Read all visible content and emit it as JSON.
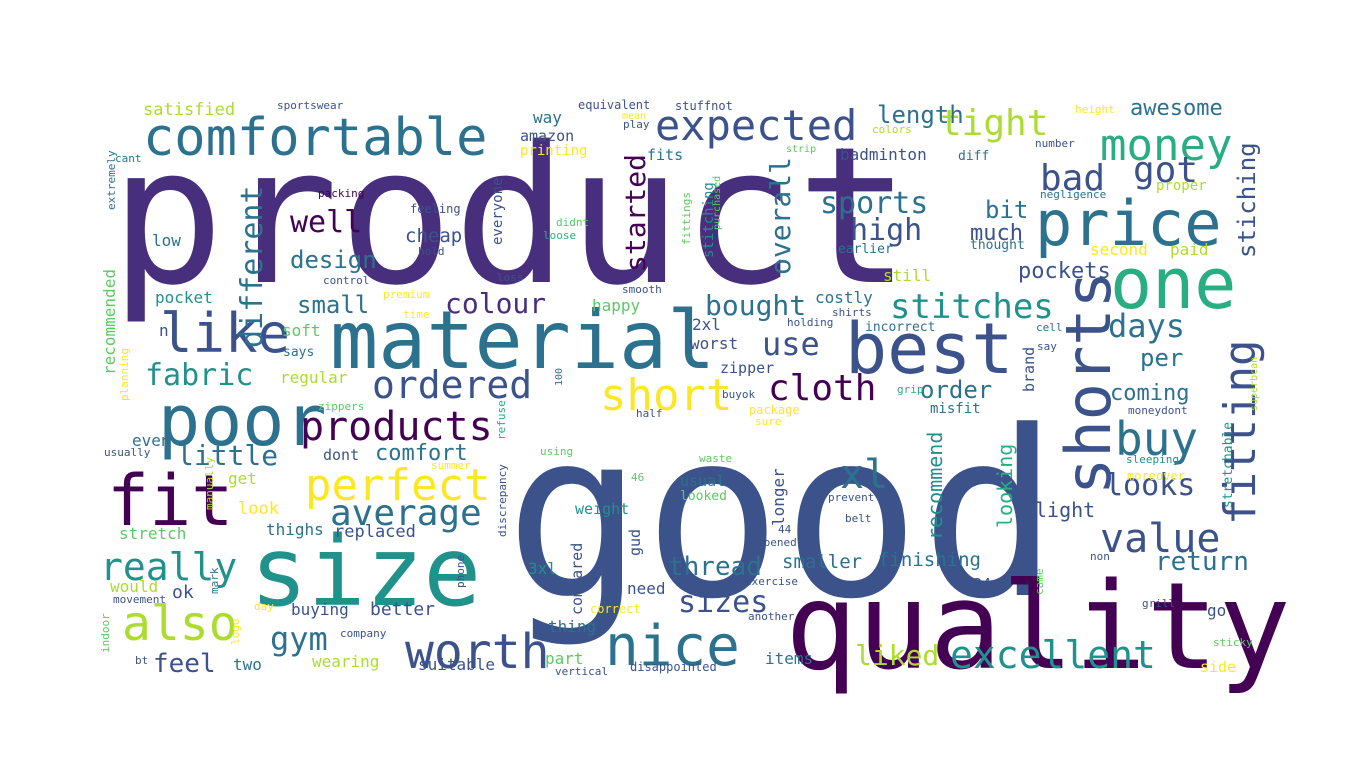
{
  "palette": {
    "dark_purple": "#440154",
    "indigo": "#472f7d",
    "blue_purple": "#3b528b",
    "steel_blue": "#2c728e",
    "teal": "#21918c",
    "sea_green": "#28ae80",
    "green": "#5ec962",
    "lime": "#addc30",
    "yellow": "#fde725"
  },
  "words": [
    {
      "text": "product",
      "color": "#472f7d"
    },
    {
      "text": "good",
      "color": "#3b528b"
    },
    {
      "text": "quality",
      "color": "#440154"
    },
    {
      "text": "size",
      "color": "#21918c"
    },
    {
      "text": "material",
      "color": "#2c728e"
    },
    {
      "text": "best",
      "color": "#3b528b"
    },
    {
      "text": "one",
      "color": "#28ae80"
    },
    {
      "text": "price",
      "color": "#2c728e"
    },
    {
      "text": "comfortable",
      "color": "#2c728e"
    },
    {
      "text": "poor",
      "color": "#2c728e"
    },
    {
      "text": "fit",
      "color": "#440154"
    },
    {
      "text": "nice",
      "color": "#2c728e"
    },
    {
      "text": "shorts",
      "color": "#3b528b"
    },
    {
      "text": "also",
      "color": "#addc30"
    },
    {
      "text": "worth",
      "color": "#3b528b"
    },
    {
      "text": "like",
      "color": "#3b528b"
    },
    {
      "text": "money",
      "color": "#28ae80"
    },
    {
      "text": "expected",
      "color": "#3b528b"
    },
    {
      "text": "buy",
      "color": "#2c728e"
    },
    {
      "text": "excellent",
      "color": "#21918c"
    },
    {
      "text": "short",
      "color": "#fde725"
    },
    {
      "text": "perfect",
      "color": "#fde725"
    },
    {
      "text": "products",
      "color": "#440154"
    },
    {
      "text": "ordered",
      "color": "#3b528b"
    },
    {
      "text": "fitting",
      "color": "#3b528b"
    },
    {
      "text": "really",
      "color": "#21918c"
    },
    {
      "text": "value",
      "color": "#3b528b"
    },
    {
      "text": "average",
      "color": "#2c728e"
    },
    {
      "text": "xl",
      "color": "#2c728e"
    },
    {
      "text": "bad",
      "color": "#3b528b"
    },
    {
      "text": "got",
      "color": "#3b528b"
    },
    {
      "text": "tight",
      "color": "#addc30"
    },
    {
      "text": "cloth",
      "color": "#440154"
    },
    {
      "text": "stitches",
      "color": "#21918c"
    },
    {
      "text": "gym",
      "color": "#2c728e"
    },
    {
      "text": "looks",
      "color": "#3b528b"
    },
    {
      "text": "days",
      "color": "#2c728e"
    },
    {
      "text": "sizes",
      "color": "#3b528b"
    },
    {
      "text": "sports",
      "color": "#2c728e"
    },
    {
      "text": "high",
      "color": "#3b528b"
    },
    {
      "text": "use",
      "color": "#3b528b"
    },
    {
      "text": "fabric",
      "color": "#21918c"
    },
    {
      "text": "colour",
      "color": "#472f7d"
    },
    {
      "text": "bought",
      "color": "#2c728e"
    },
    {
      "text": "started",
      "color": "#440154"
    },
    {
      "text": "overall",
      "color": "#2c728e"
    },
    {
      "text": "different",
      "color": "#2c728e"
    },
    {
      "text": "well",
      "color": "#440154"
    },
    {
      "text": "liked",
      "color": "#addc30"
    },
    {
      "text": "little",
      "color": "#2c728e"
    },
    {
      "text": "feel",
      "color": "#3b528b"
    },
    {
      "text": "thread",
      "color": "#2c728e"
    },
    {
      "text": "return",
      "color": "#2c728e"
    },
    {
      "text": "awesome",
      "color": "#2c728e"
    },
    {
      "text": "length",
      "color": "#2c728e"
    },
    {
      "text": "stiching",
      "color": "#3b528b"
    },
    {
      "text": "pockets",
      "color": "#3b528b"
    },
    {
      "text": "per",
      "color": "#2c728e"
    },
    {
      "text": "order",
      "color": "#2c728e"
    },
    {
      "text": "coming",
      "color": "#2c728e"
    },
    {
      "text": "comfort",
      "color": "#2c728e"
    },
    {
      "text": "design",
      "color": "#2c728e"
    },
    {
      "text": "small",
      "color": "#2c728e"
    },
    {
      "text": "bit",
      "color": "#2c728e"
    },
    {
      "text": "much",
      "color": "#3b528b"
    },
    {
      "text": "recommend",
      "color": "#21918c"
    },
    {
      "text": "looking",
      "color": "#28ae80"
    },
    {
      "text": "light",
      "color": "#3b528b"
    },
    {
      "text": "smaller",
      "color": "#2c728e"
    },
    {
      "text": "finishing",
      "color": "#2c728e"
    },
    {
      "text": "cheap",
      "color": "#3b528b"
    },
    {
      "text": "second",
      "color": "#fde725"
    },
    {
      "text": "paid",
      "color": "#addc30"
    },
    {
      "text": "satisfied",
      "color": "#addc30"
    },
    {
      "text": "sportswear",
      "color": "#3b528b"
    },
    {
      "text": "equivalent",
      "color": "#3b528b"
    },
    {
      "text": "stuffnot",
      "color": "#3b528b"
    },
    {
      "text": "height",
      "color": "#fde725"
    },
    {
      "text": "mean",
      "color": "#fde725"
    },
    {
      "text": "play",
      "color": "#3b528b"
    },
    {
      "text": "colors",
      "color": "#addc30"
    },
    {
      "text": "cant",
      "color": "#2c728e"
    },
    {
      "text": "extremely",
      "color": "#2c728e"
    },
    {
      "text": "printing",
      "color": "#fde725"
    },
    {
      "text": "way",
      "color": "#2c728e"
    },
    {
      "text": "amazon",
      "color": "#3b528b"
    },
    {
      "text": "fits",
      "color": "#2c728e"
    },
    {
      "text": "badminton",
      "color": "#3b528b"
    },
    {
      "text": "diff",
      "color": "#2c728e"
    },
    {
      "text": "number",
      "color": "#3b528b"
    },
    {
      "text": "strip",
      "color": "#5ec962"
    },
    {
      "text": "negligence",
      "color": "#2c728e"
    },
    {
      "text": "proper",
      "color": "#addc30"
    },
    {
      "text": "packing",
      "color": "#440154"
    },
    {
      "text": "feeling",
      "color": "#3b528b"
    },
    {
      "text": "didnt",
      "color": "#5ec962"
    },
    {
      "text": "loose",
      "color": "#28ae80"
    },
    {
      "text": "hold",
      "color": "#3b528b"
    },
    {
      "text": "fittings",
      "color": "#5ec962"
    },
    {
      "text": "purchased",
      "color": "#5ec962"
    },
    {
      "text": "stitching",
      "color": "#21918c"
    },
    {
      "text": "thought",
      "color": "#2c728e"
    },
    {
      "text": "earlier",
      "color": "#2c728e"
    },
    {
      "text": "still",
      "color": "#addc30"
    },
    {
      "text": "everyone",
      "color": "#3b528b"
    },
    {
      "text": "low",
      "color": "#2c728e"
    },
    {
      "text": "control",
      "color": "#3b528b"
    },
    {
      "text": "loss",
      "color": "#3b528b"
    },
    {
      "text": "smooth",
      "color": "#3b528b"
    },
    {
      "text": "premium",
      "color": "#fde725"
    },
    {
      "text": "happy",
      "color": "#5ec962"
    },
    {
      "text": "costly",
      "color": "#2c728e"
    },
    {
      "text": "shirts",
      "color": "#3b528b"
    },
    {
      "text": "holding",
      "color": "#3b528b"
    },
    {
      "text": "incorrect",
      "color": "#2c728e"
    },
    {
      "text": "cell",
      "color": "#2c728e"
    },
    {
      "text": "say",
      "color": "#3b528b"
    },
    {
      "text": "brand",
      "color": "#3b528b"
    },
    {
      "text": "recommended",
      "color": "#5ec962"
    },
    {
      "text": "pocket",
      "color": "#21918c"
    },
    {
      "text": "n",
      "color": "#3b528b"
    },
    {
      "text": "soft",
      "color": "#5ec962"
    },
    {
      "text": "says",
      "color": "#2c728e"
    },
    {
      "text": "regular",
      "color": "#addc30"
    },
    {
      "text": "2xl",
      "color": "#3b528b"
    },
    {
      "text": "worst",
      "color": "#3b528b"
    },
    {
      "text": "zipper",
      "color": "#3b528b"
    },
    {
      "text": "100",
      "color": "#2c728e"
    },
    {
      "text": "refuse",
      "color": "#28ae80"
    },
    {
      "text": "buyok",
      "color": "#3b528b"
    },
    {
      "text": "grip",
      "color": "#28ae80"
    },
    {
      "text": "misfit",
      "color": "#2c728e"
    },
    {
      "text": "moneydont",
      "color": "#3b528b"
    },
    {
      "text": "superbcan",
      "color": "#addc30"
    },
    {
      "text": "stretchable",
      "color": "#21918c"
    },
    {
      "text": "planning",
      "color": "#fde725"
    },
    {
      "text": "zippers",
      "color": "#5ec962"
    },
    {
      "text": "package",
      "color": "#fde725"
    },
    {
      "text": "sure",
      "color": "#fde725"
    },
    {
      "text": "half",
      "color": "#3b528b"
    },
    {
      "text": "even",
      "color": "#2c728e"
    },
    {
      "text": "usually",
      "color": "#3b528b"
    },
    {
      "text": "dont",
      "color": "#3b528b"
    },
    {
      "text": "using",
      "color": "#5ec962"
    },
    {
      "text": "summer",
      "color": "#fde725"
    },
    {
      "text": "manually",
      "color": "#addc30"
    },
    {
      "text": "discrepancy",
      "color": "#3b528b"
    },
    {
      "text": "46",
      "color": "#5ec962"
    },
    {
      "text": "waste",
      "color": "#5ec962"
    },
    {
      "text": "usual",
      "color": "#2c728e"
    },
    {
      "text": "looked",
      "color": "#5ec962"
    },
    {
      "text": "prevent",
      "color": "#3b528b"
    },
    {
      "text": "sleeping",
      "color": "#21918c"
    },
    {
      "text": "moreover",
      "color": "#fde725"
    },
    {
      "text": "get",
      "color": "#addc30"
    },
    {
      "text": "look",
      "color": "#fde725"
    },
    {
      "text": "thighs",
      "color": "#2c728e"
    },
    {
      "text": "replaced",
      "color": "#3b528b"
    },
    {
      "text": "weight",
      "color": "#21918c"
    },
    {
      "text": "longer",
      "color": "#3b528b"
    },
    {
      "text": "belt",
      "color": "#3b528b"
    },
    {
      "text": "44",
      "color": "#3b528b"
    },
    {
      "text": "opened",
      "color": "#3b528b"
    },
    {
      "text": "stretch",
      "color": "#5ec962"
    },
    {
      "text": "3xl",
      "color": "#21918c"
    },
    {
      "text": "gud",
      "color": "#3b528b"
    },
    {
      "text": "non",
      "color": "#3b528b"
    },
    {
      "text": "ok",
      "color": "#3b528b"
    },
    {
      "text": "would",
      "color": "#addc30"
    },
    {
      "text": "34",
      "color": "#3b528b"
    },
    {
      "text": "compared",
      "color": "#3b528b"
    },
    {
      "text": "phone",
      "color": "#3b528b"
    },
    {
      "text": "mark",
      "color": "#2c728e"
    },
    {
      "text": "exercise",
      "color": "#3b528b"
    },
    {
      "text": "came",
      "color": "#5ec962"
    },
    {
      "text": "need",
      "color": "#3b528b"
    },
    {
      "text": "better",
      "color": "#3b528b"
    },
    {
      "text": "buying",
      "color": "#3b528b"
    },
    {
      "text": "movement",
      "color": "#3b528b"
    },
    {
      "text": "indoor",
      "color": "#5ec962"
    },
    {
      "text": "day",
      "color": "#fde725"
    },
    {
      "text": "logo",
      "color": "#fde725"
    },
    {
      "text": "thing",
      "color": "#2c728e"
    },
    {
      "text": "correct",
      "color": "#fde725"
    },
    {
      "text": "another",
      "color": "#3b528b"
    },
    {
      "text": "go",
      "color": "#3b528b"
    },
    {
      "text": "grill",
      "color": "#3b528b"
    },
    {
      "text": "company",
      "color": "#3b528b"
    },
    {
      "text": "part",
      "color": "#5ec962"
    },
    {
      "text": "items",
      "color": "#2c728e"
    },
    {
      "text": "sticky",
      "color": "#5ec962"
    },
    {
      "text": "side",
      "color": "#fde725"
    },
    {
      "text": "two",
      "color": "#2c728e"
    },
    {
      "text": "wearing",
      "color": "#addc30"
    },
    {
      "text": "suitable",
      "color": "#3b528b"
    },
    {
      "text": "bt",
      "color": "#3b528b"
    },
    {
      "text": "vertical",
      "color": "#3b528b"
    },
    {
      "text": "disappointed",
      "color": "#3b528b"
    },
    {
      "text": "time",
      "color": "#fde725"
    }
  ]
}
